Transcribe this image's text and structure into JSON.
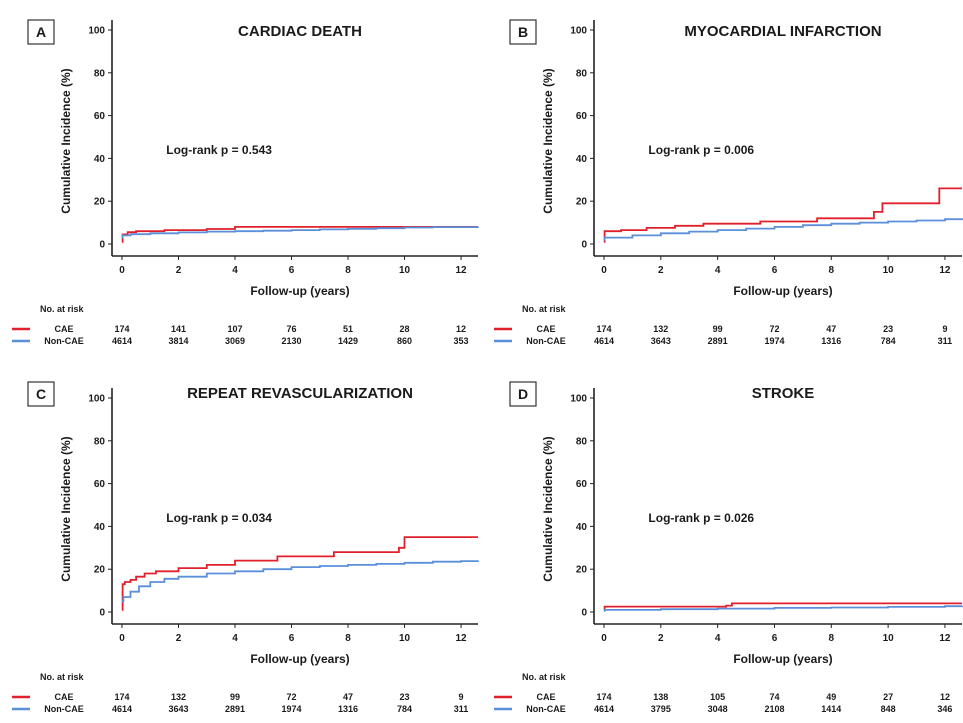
{
  "colors": {
    "cae": "#e0202a",
    "non_cae": "#5b8fd9",
    "axis": "#222222"
  },
  "legend_series": [
    "CAE",
    "Non-CAE"
  ],
  "risk_header": "No. at risk",
  "chart_data": [
    {
      "type": "line",
      "panel": "A",
      "title": "CARDIAC DEATH",
      "xlabel": "Follow-up  (years)",
      "ylabel": "Cumulative Incidence (%)",
      "xlim": [
        0,
        12.6
      ],
      "ylim": [
        0,
        100
      ],
      "xticks": [
        0,
        2,
        4,
        6,
        8,
        10,
        12
      ],
      "yticks": [
        0,
        20,
        40,
        60,
        80,
        100
      ],
      "annotation": "Log-rank p = 0.543",
      "annotation_pos": [
        1,
        42
      ],
      "series": [
        {
          "name": "CAE",
          "color": "#e0202a",
          "x": [
            0,
            0.02,
            0.2,
            0.5,
            1.5,
            3,
            4,
            6,
            8,
            10,
            12.6
          ],
          "y": [
            1,
            4.5,
            5.5,
            6,
            6.5,
            7,
            8,
            8,
            8,
            8,
            8
          ]
        },
        {
          "name": "Non-CAE",
          "color": "#5b8fd9",
          "x": [
            0,
            0.02,
            0.3,
            1,
            2,
            3,
            4,
            5,
            6,
            7,
            8,
            9,
            10,
            11,
            12.6
          ],
          "y": [
            3,
            4,
            4.6,
            5,
            5.4,
            5.8,
            6,
            6.2,
            6.5,
            6.8,
            7.1,
            7.4,
            7.7,
            7.9,
            8
          ]
        }
      ],
      "risk_table": {
        "times": [
          0,
          2,
          4,
          6,
          8,
          10,
          12
        ],
        "CAE": [
          174,
          141,
          107,
          76,
          51,
          28,
          12
        ],
        "Non-CAE": [
          4614,
          3814,
          3069,
          2130,
          1429,
          860,
          353
        ]
      }
    },
    {
      "type": "line",
      "panel": "B",
      "title": "MYOCARDIAL INFARCTION",
      "xlabel": "Follow-up  (years)",
      "ylabel": "Cumulative Incidence (%)",
      "xlim": [
        0,
        12.6
      ],
      "ylim": [
        0,
        100
      ],
      "xticks": [
        0,
        2,
        4,
        6,
        8,
        10,
        12
      ],
      "yticks": [
        0,
        20,
        40,
        60,
        80,
        100
      ],
      "annotation": "Log-rank p = 0.006",
      "annotation_pos": [
        1,
        42
      ],
      "series": [
        {
          "name": "CAE",
          "color": "#e0202a",
          "x": [
            0,
            0.02,
            0.6,
            1.5,
            2.5,
            3.5,
            5.5,
            7.5,
            9.5,
            9.8,
            11.8,
            12.6
          ],
          "y": [
            1,
            6,
            6.5,
            7.5,
            8.5,
            9.5,
            10.5,
            12,
            15,
            19,
            26,
            26
          ]
        },
        {
          "name": "Non-CAE",
          "color": "#5b8fd9",
          "x": [
            0,
            0.02,
            1,
            2,
            3,
            4,
            5,
            6,
            7,
            8,
            9,
            10,
            11,
            12,
            12.6
          ],
          "y": [
            2,
            3,
            4,
            5,
            5.8,
            6.5,
            7.2,
            8,
            8.8,
            9.5,
            10,
            10.5,
            11,
            11.6,
            12
          ]
        }
      ],
      "risk_table": {
        "times": [
          0,
          2,
          4,
          6,
          8,
          10,
          12
        ],
        "CAE": [
          174,
          132,
          99,
          72,
          47,
          23,
          9
        ],
        "Non-CAE": [
          4614,
          3643,
          2891,
          1974,
          1316,
          784,
          311
        ]
      }
    },
    {
      "type": "line",
      "panel": "C",
      "title": "REPEAT REVASCULARIZATION",
      "xlabel": "Follow-up  (years)",
      "ylabel": "Cumulative Incidence (%)",
      "xlim": [
        0,
        12.6
      ],
      "ylim": [
        0,
        100
      ],
      "xticks": [
        0,
        2,
        4,
        6,
        8,
        10,
        12
      ],
      "yticks": [
        0,
        20,
        40,
        60,
        80,
        100
      ],
      "annotation": "Log-rank p = 0.034",
      "annotation_pos": [
        1,
        42
      ],
      "series": [
        {
          "name": "CAE",
          "color": "#e0202a",
          "x": [
            0,
            0.02,
            0.1,
            0.3,
            0.5,
            0.8,
            1.2,
            2,
            3,
            4,
            5.5,
            7.5,
            9.8,
            10,
            12.6
          ],
          "y": [
            1,
            13,
            14,
            15,
            16.5,
            18,
            19,
            20.5,
            22,
            24,
            26,
            28,
            30,
            35,
            35
          ]
        },
        {
          "name": "Non-CAE",
          "color": "#5b8fd9",
          "x": [
            0,
            0.05,
            0.3,
            0.6,
            1,
            1.5,
            2,
            3,
            4,
            5,
            6,
            7,
            8,
            9,
            10,
            11,
            12,
            12.6
          ],
          "y": [
            5,
            7,
            9.5,
            12,
            14,
            15.5,
            16.5,
            18,
            19,
            20,
            21,
            21.5,
            22,
            22.5,
            23,
            23.5,
            23.8,
            24
          ]
        }
      ],
      "risk_table": {
        "times": [
          0,
          2,
          4,
          6,
          8,
          10,
          12
        ],
        "CAE": [
          174,
          132,
          99,
          72,
          47,
          23,
          9
        ],
        "Non-CAE": [
          4614,
          3643,
          2891,
          1974,
          1316,
          784,
          311
        ]
      }
    },
    {
      "type": "line",
      "panel": "D",
      "title": "STROKE",
      "xlabel": "Follow-up  (years)",
      "ylabel": "Cumulative Incidence (%)",
      "xlim": [
        0,
        12.6
      ],
      "ylim": [
        0,
        100
      ],
      "xticks": [
        0,
        2,
        4,
        6,
        8,
        10,
        12
      ],
      "yticks": [
        0,
        20,
        40,
        60,
        80,
        100
      ],
      "annotation": "Log-rank p = 0.026",
      "annotation_pos": [
        1,
        42
      ],
      "series": [
        {
          "name": "CAE",
          "color": "#e0202a",
          "x": [
            0,
            0.02,
            2,
            4.3,
            4.5,
            8,
            12.6
          ],
          "y": [
            1,
            2.5,
            2.5,
            3,
            4,
            4,
            4
          ]
        },
        {
          "name": "Non-CAE",
          "color": "#5b8fd9",
          "x": [
            0,
            0.02,
            2,
            4,
            6,
            8,
            10,
            12,
            12.6
          ],
          "y": [
            0.5,
            1,
            1.3,
            1.6,
            1.9,
            2.1,
            2.4,
            2.7,
            3
          ]
        }
      ],
      "risk_table": {
        "times": [
          0,
          2,
          4,
          6,
          8,
          10,
          12
        ],
        "CAE": [
          174,
          138,
          105,
          74,
          49,
          27,
          12
        ],
        "Non-CAE": [
          4614,
          3795,
          3048,
          2108,
          1414,
          848,
          346
        ]
      }
    }
  ]
}
